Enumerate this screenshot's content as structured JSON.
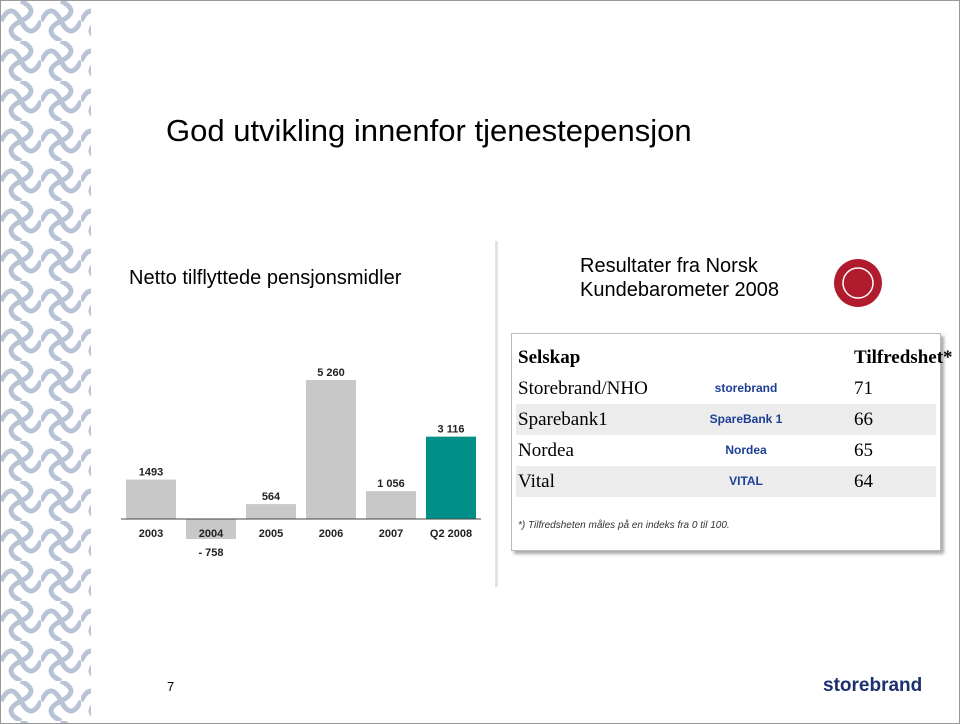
{
  "slide": {
    "title": "God utvikling innenfor tjenestepensjon",
    "page_number": "7",
    "logo": "storebrand"
  },
  "chart_data": {
    "type": "bar",
    "title": "Netto tilflyttede pensjonsmidler",
    "categories": [
      "2003",
      "2004",
      "2005",
      "2006",
      "2007",
      "Q2 2008"
    ],
    "values": [
      1493,
      -758,
      564,
      5260,
      1056,
      3116
    ],
    "value_labels": [
      "1493",
      "- 758",
      "564",
      "5 260",
      "1 056",
      "3 116"
    ],
    "colors": [
      "#c8c8c8",
      "#c8c8c8",
      "#c8c8c8",
      "#c8c8c8",
      "#c8c8c8",
      "#009088"
    ]
  },
  "table": {
    "title": "Resultater fra Norsk Kundebarometer 2008",
    "headers": [
      "Selskap",
      "Tilfredshet*"
    ],
    "rows": [
      [
        "Storebrand/NHO",
        "storebrand",
        "71"
      ],
      [
        "Sparebank1",
        "SpareBank 1",
        "66"
      ],
      [
        "Nordea",
        "Nordea",
        "65"
      ],
      [
        "Vital",
        "VITAL",
        "64"
      ]
    ],
    "footnote": "*) Tilfredsheten måles på en indeks fra 0 til 100."
  }
}
